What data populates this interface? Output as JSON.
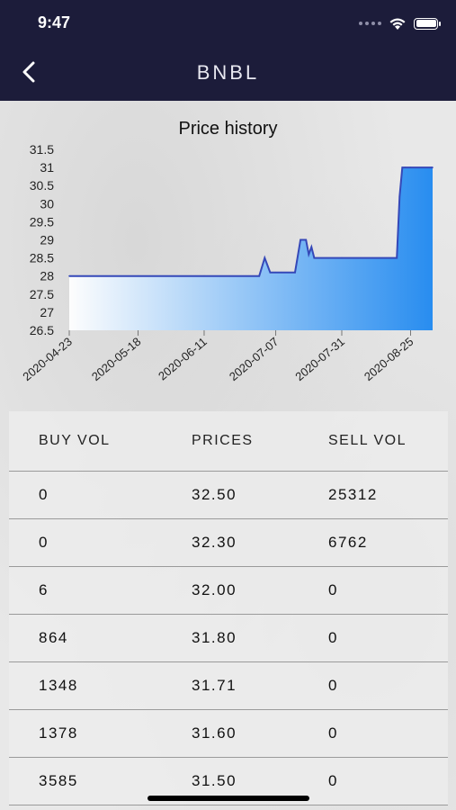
{
  "status_bar": {
    "time": "9:47"
  },
  "nav": {
    "title": "BNBL"
  },
  "chart_data": {
    "type": "area",
    "title": "Price history",
    "ylim": [
      26.5,
      31.5
    ],
    "yticks": [
      "31.5",
      "31",
      "30.5",
      "30",
      "29.5",
      "29",
      "28.5",
      "28",
      "27.5",
      "27",
      "26.5"
    ],
    "xticks": [
      "2020-04-23",
      "2020-05-18",
      "2020-06-11",
      "2020-07-07",
      "2020-07-31",
      "2020-08-25"
    ],
    "x": [
      "2020-04-23",
      "2020-05-18",
      "2020-06-11",
      "2020-07-01",
      "2020-07-03",
      "2020-07-05",
      "2020-07-07",
      "2020-07-09",
      "2020-07-14",
      "2020-07-16",
      "2020-07-18",
      "2020-07-19",
      "2020-07-20",
      "2020-07-21",
      "2020-07-31",
      "2020-08-20",
      "2020-08-21",
      "2020-08-22",
      "2020-08-23",
      "2020-08-25",
      "2020-09-02"
    ],
    "values": [
      28,
      28,
      28,
      28,
      28.5,
      28.1,
      28.1,
      28.1,
      28.1,
      29,
      29,
      28.6,
      28.8,
      28.5,
      28.5,
      28.5,
      30.2,
      31,
      31,
      31,
      31
    ],
    "grid": false,
    "legend": "none",
    "colors": {
      "line": "#3548b8",
      "fill_light": "#ffffff",
      "fill_dark": "#1e88f0"
    }
  },
  "table": {
    "headers": [
      "BUY VOL",
      "PRICES",
      "SELL VOL"
    ],
    "rows": [
      [
        "0",
        "32.50",
        "25312"
      ],
      [
        "0",
        "32.30",
        "6762"
      ],
      [
        "6",
        "32.00",
        "0"
      ],
      [
        "864",
        "31.80",
        "0"
      ],
      [
        "1348",
        "31.71",
        "0"
      ],
      [
        "1378",
        "31.60",
        "0"
      ],
      [
        "3585",
        "31.50",
        "0"
      ]
    ]
  }
}
